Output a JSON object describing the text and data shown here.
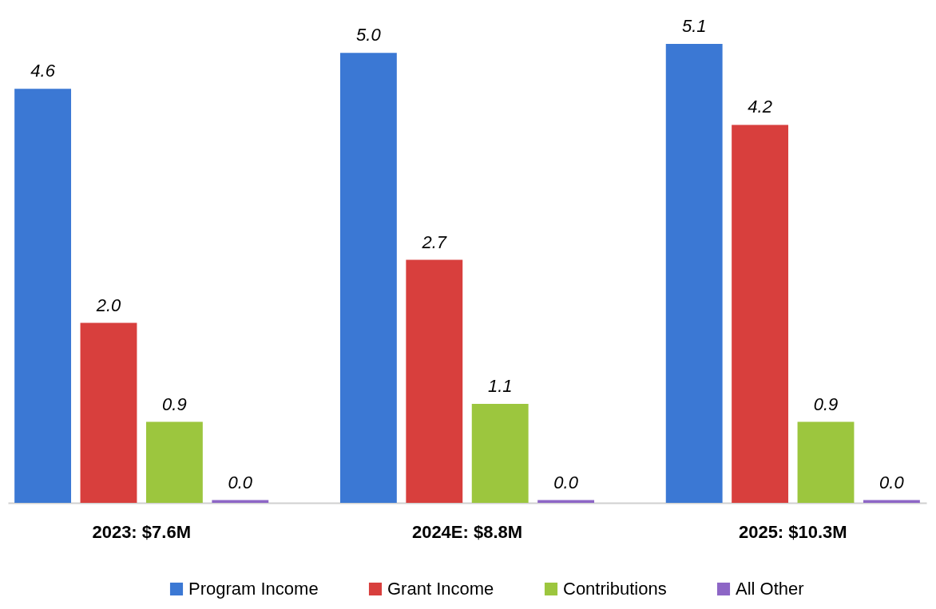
{
  "chart_data": {
    "type": "bar",
    "categories": [
      "2023:  $7.6M",
      "2024E: $8.8M",
      "2025:  $10.3M"
    ],
    "series": [
      {
        "name": "Program Income",
        "color": "#3b78d4",
        "values": [
          4.6,
          5.0,
          5.1
        ],
        "value_labels": [
          "4.6",
          "5.0",
          "5.1"
        ]
      },
      {
        "name": "Grant Income",
        "color": "#d83f3d",
        "values": [
          2.0,
          2.7,
          4.2
        ],
        "value_labels": [
          "2.0",
          "2.7",
          "4.2"
        ]
      },
      {
        "name": "Contributions",
        "color": "#9cc63e",
        "values": [
          0.9,
          1.1,
          0.9
        ],
        "value_labels": [
          "0.9",
          "1.1",
          "0.9"
        ]
      },
      {
        "name": "All Other",
        "color": "#8d66c6",
        "values": [
          0.03,
          0.03,
          0.03
        ],
        "value_labels": [
          "0.0",
          "0.0",
          "0.0"
        ]
      }
    ],
    "legend": "bottom"
  }
}
